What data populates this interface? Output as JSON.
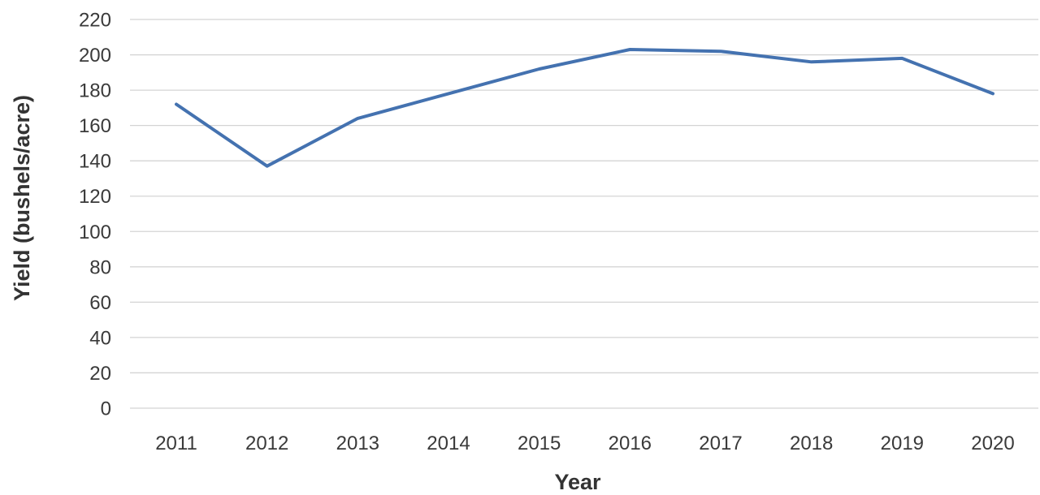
{
  "chart_data": {
    "type": "line",
    "title": "",
    "xlabel": "Year",
    "ylabel": "Yield (bushels/acre)",
    "categories": [
      "2011",
      "2012",
      "2013",
      "2014",
      "2015",
      "2016",
      "2017",
      "2018",
      "2019",
      "2020"
    ],
    "series": [
      {
        "values": [
          172,
          137,
          164,
          178,
          192,
          203,
          202,
          196,
          198,
          178
        ],
        "color": "#4472b0"
      }
    ],
    "ylim": [
      0,
      220
    ],
    "yticks": [
      0,
      20,
      40,
      60,
      80,
      100,
      120,
      140,
      160,
      180,
      200,
      220
    ],
    "grid": true,
    "legend": "none"
  }
}
